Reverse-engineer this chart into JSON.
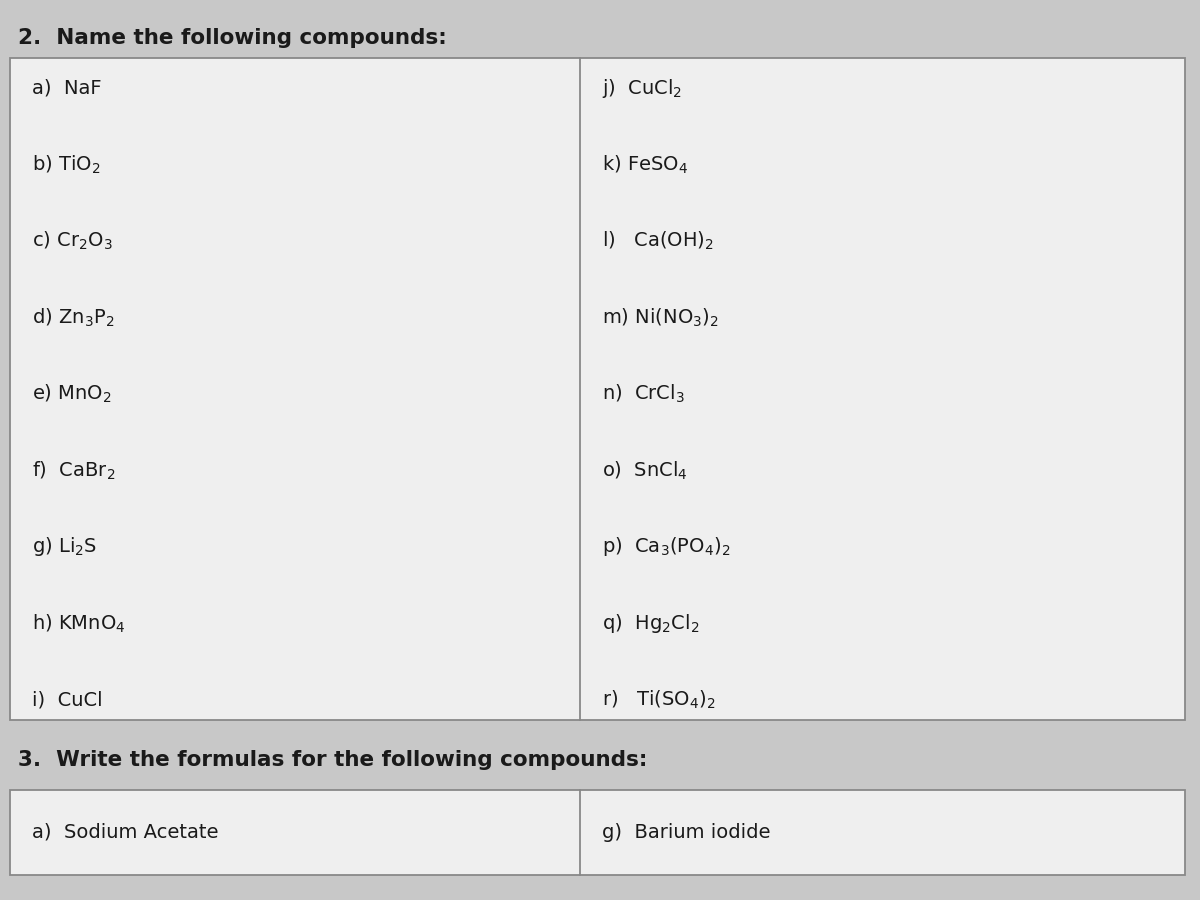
{
  "title": "2.  Name the following compounds:",
  "title2": "3.  Write the formulas for the following compounds:",
  "bg_color": "#c8c8c8",
  "box_bg": "#efefef",
  "box_border": "#888888",
  "left_items": [
    "a)  NaF",
    "b) TiO$_2$",
    "c) Cr$_2$O$_3$",
    "d) Zn$_3$P$_2$",
    "e) MnO$_2$",
    "f)  CaBr$_2$",
    "g) Li$_2$S",
    "h) KMnO$_4$",
    "i)  CuCl"
  ],
  "right_items": [
    "j)  CuCl$_2$",
    "k) FeSO$_4$",
    "l)   Ca(OH)$_2$",
    "m) Ni(NO$_3$)$_2$",
    "n)  CrCl$_3$",
    "o)  SnCl$_4$",
    "p)  Ca$_3$(PO$_4$)$_2$",
    "q)  Hg$_2$Cl$_2$",
    "r)   Ti(SO$_4$)$_2$"
  ],
  "section3_left": "a)  Sodium Acetate",
  "section3_right": "g)  Barium iodide",
  "text_color": "#1a1a1a",
  "font_size": 14,
  "title_font_size": 15.5
}
